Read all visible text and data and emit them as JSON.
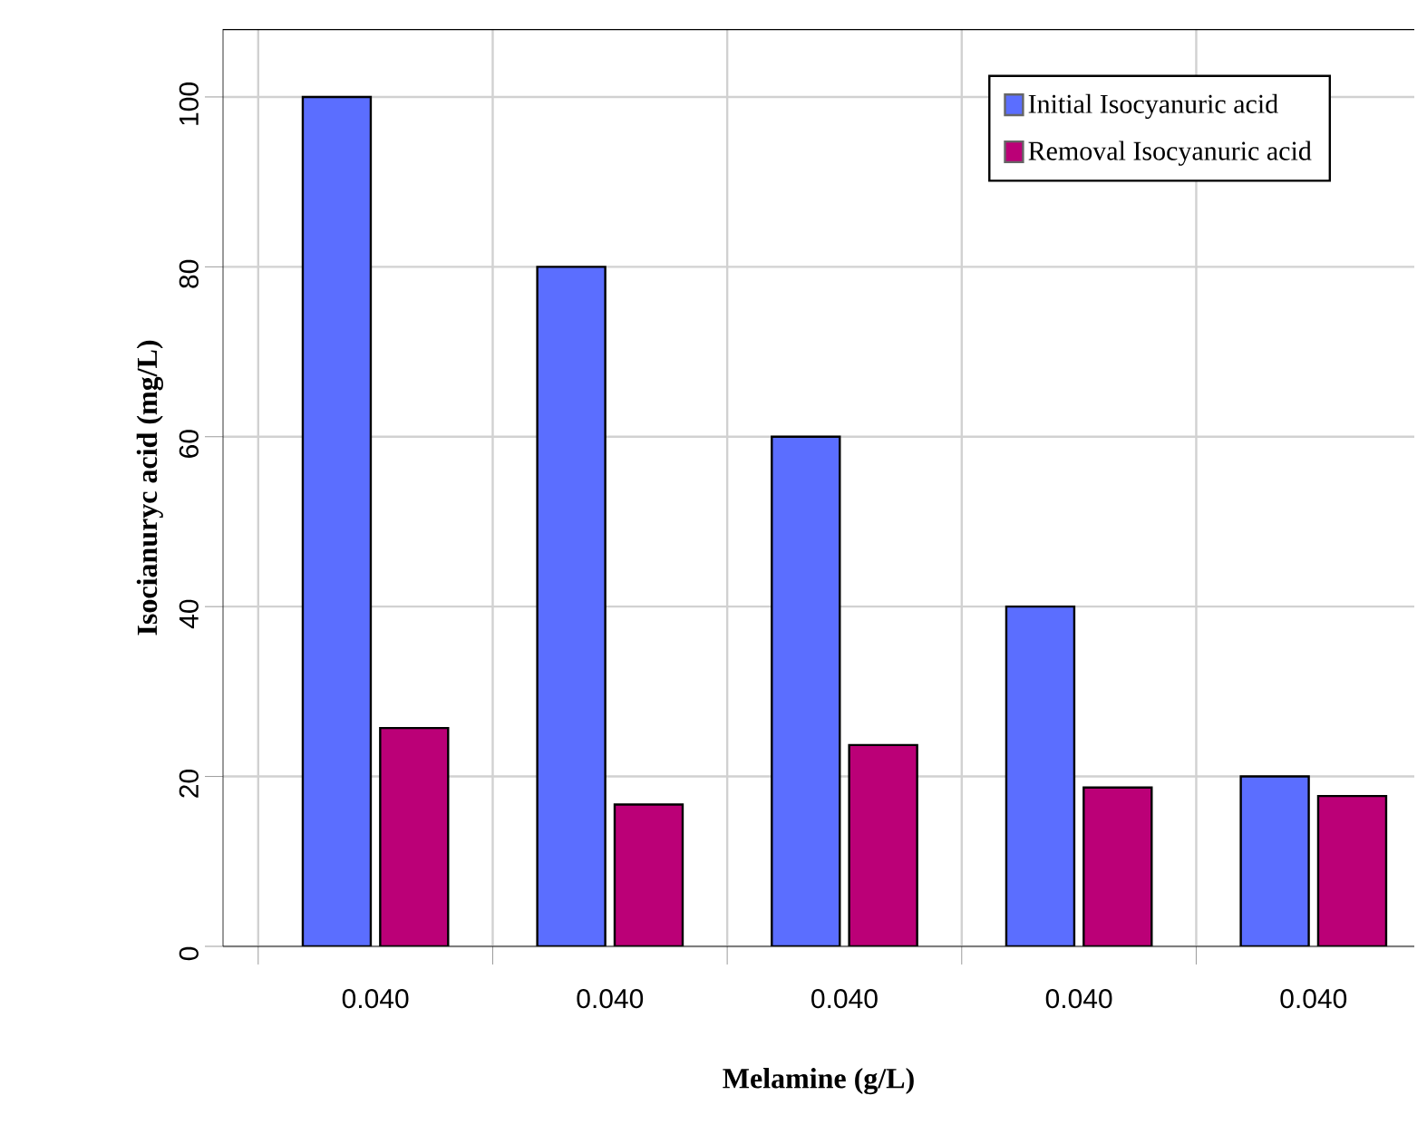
{
  "chart_data": {
    "type": "bar",
    "xlabel": "Melamine (g/L)",
    "ylabel": "Isocianuryc acid (mg/L)",
    "categories": [
      "0.040",
      "0.040",
      "0.040",
      "0.040",
      "0.040"
    ],
    "series": [
      {
        "name": "Initial Isocyanuric acid",
        "color": "#5b6eff",
        "values": [
          100,
          80,
          60,
          40,
          20
        ]
      },
      {
        "name": "Removal Isocyanuric acid",
        "color": "#bb0077",
        "values": [
          25.7,
          16.7,
          23.7,
          18.7,
          17.7
        ]
      }
    ],
    "ylim": [
      0,
      108
    ],
    "yticks": [
      0,
      20,
      40,
      60,
      80,
      100
    ],
    "grid": true,
    "legend": "top right"
  }
}
